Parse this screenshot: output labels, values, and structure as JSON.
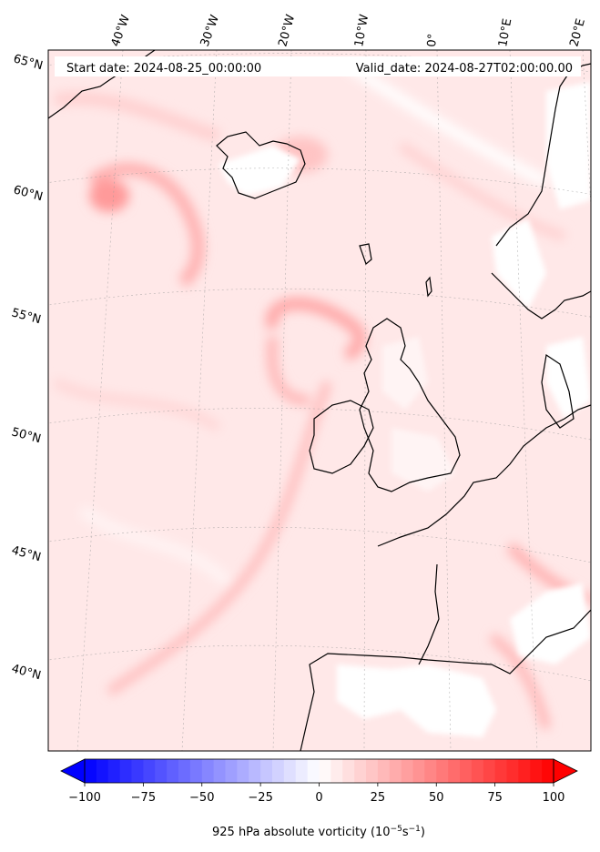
{
  "header": {
    "start_date": "Start date: 2024-08-25_00:00:00",
    "valid_date": "Valid_date: 2024-08-27T02:00:00.00"
  },
  "longitude_labels": [
    "40°W",
    "30°W",
    "20°W",
    "10°W",
    "0°",
    "10°E",
    "20°E"
  ],
  "latitude_labels": [
    "65°N",
    "60°N",
    "55°N",
    "50°N",
    "45°N",
    "40°N"
  ],
  "colorbar": {
    "ticks": [
      "−100",
      "−75",
      "−50",
      "−25",
      "0",
      "25",
      "50",
      "75",
      "100"
    ],
    "label_main": "925 hPa absolute vorticity (10",
    "label_exp1": "−5",
    "label_mid": "s",
    "label_exp2": "−1",
    "label_end": ")",
    "min": -100,
    "max": 100,
    "levels": 40,
    "color_negative": "#0000ff",
    "color_zero": "#ffffff",
    "color_positive": "#ff0000"
  },
  "chart_data": {
    "type": "heatmap",
    "variable": "925 hPa absolute vorticity",
    "units": "10^-5 s^-1",
    "range": [
      -100,
      100
    ],
    "extend": "both",
    "colormap": "bwr",
    "gridlines": true
  }
}
